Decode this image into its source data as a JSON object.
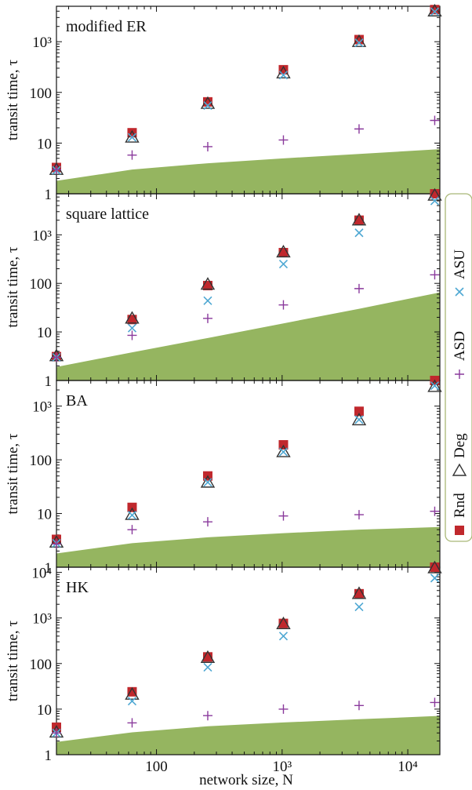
{
  "colors": {
    "rnd": "#c0282d",
    "deg": "#333333",
    "asu": "#4fa8d3",
    "asd": "#8a3a9c",
    "band": "#95b560",
    "legend_border": "#a9b877"
  },
  "shared": {
    "xlabel": "network size, N",
    "ylabel": "transit time, τ",
    "x_ticks": [
      "100",
      "10³",
      "10⁴"
    ],
    "xlim": [
      16,
      18000
    ]
  },
  "legend": {
    "items": [
      {
        "key": "rnd",
        "label": "Rnd",
        "marker": "square"
      },
      {
        "key": "deg",
        "label": "Deg",
        "marker": "triangle"
      },
      {
        "key": "asd",
        "label": "ASD",
        "marker": "plus"
      },
      {
        "key": "asu",
        "label": "ASU",
        "marker": "cross"
      }
    ]
  },
  "chart_data": [
    {
      "type": "scatter",
      "title": "modified ER",
      "xscale": "log",
      "yscale": "log",
      "ylim": [
        1,
        5000
      ],
      "y_ticks": [
        "1",
        "10",
        "100",
        "10³"
      ],
      "x": [
        16,
        64,
        256,
        1024,
        4096,
        16384
      ],
      "series": [
        {
          "name": "Rnd",
          "key": "rnd",
          "marker": "square",
          "values": [
            3.3,
            16,
            65,
            280,
            1100,
            4300
          ]
        },
        {
          "name": "Deg",
          "key": "deg",
          "marker": "triangle",
          "values": [
            3.0,
            13,
            60,
            240,
            1000,
            4000
          ]
        },
        {
          "name": "ASU",
          "key": "asu",
          "marker": "cross",
          "values": [
            2.9,
            13,
            55,
            220,
            950,
            3900
          ]
        },
        {
          "name": "ASD",
          "key": "asd",
          "marker": "plus",
          "values": [
            3.0,
            5.8,
            8.5,
            11.5,
            19,
            28
          ]
        }
      ],
      "band": {
        "x": [
          16,
          64,
          256,
          1024,
          4096,
          18000
        ],
        "upper": [
          1.8,
          3.0,
          4.0,
          5.0,
          6.1,
          7.6
        ]
      }
    },
    {
      "type": "scatter",
      "title": "square lattice",
      "xscale": "log",
      "yscale": "log",
      "ylim": [
        1,
        7000
      ],
      "y_ticks": [
        "1",
        "10",
        "100",
        "10³"
      ],
      "x": [
        16,
        64,
        256,
        1024,
        4096,
        16384
      ],
      "series": [
        {
          "name": "Rnd",
          "key": "rnd",
          "marker": "square",
          "values": [
            3.1,
            18,
            90,
            430,
            2000,
            7000
          ]
        },
        {
          "name": "Deg",
          "key": "deg",
          "marker": "triangle",
          "values": [
            3.2,
            19,
            95,
            440,
            2000,
            6500
          ]
        },
        {
          "name": "ASU",
          "key": "asu",
          "marker": "cross",
          "values": [
            3.0,
            12,
            44,
            250,
            1100,
            5000
          ]
        },
        {
          "name": "ASD",
          "key": "asd",
          "marker": "plus",
          "values": [
            3.0,
            8.5,
            19,
            36,
            78,
            150
          ]
        }
      ],
      "band": {
        "x": [
          16,
          64,
          256,
          1024,
          4096,
          18000
        ],
        "upper": [
          1.9,
          3.8,
          7.5,
          15,
          30,
          65
        ]
      }
    },
    {
      "type": "scatter",
      "title": "BA",
      "xscale": "log",
      "yscale": "log",
      "ylim": [
        1,
        3000
      ],
      "y_ticks": [
        "1",
        "10",
        "100",
        "10³"
      ],
      "x": [
        16,
        64,
        256,
        1024,
        4096,
        16384
      ],
      "series": [
        {
          "name": "Rnd",
          "key": "rnd",
          "marker": "square",
          "values": [
            3.3,
            13,
            50,
            190,
            800,
            3000
          ]
        },
        {
          "name": "Deg",
          "key": "deg",
          "marker": "triangle",
          "values": [
            2.9,
            9.5,
            38,
            140,
            550,
            2300
          ]
        },
        {
          "name": "ASU",
          "key": "asu",
          "marker": "cross",
          "values": [
            2.8,
            9.3,
            38,
            140,
            560,
            2400
          ]
        },
        {
          "name": "ASD",
          "key": "asd",
          "marker": "plus",
          "values": [
            2.7,
            5.0,
            7.0,
            9.0,
            9.5,
            11
          ]
        }
      ],
      "band": {
        "x": [
          16,
          64,
          256,
          1024,
          4096,
          18000
        ],
        "upper": [
          1.8,
          2.8,
          3.6,
          4.3,
          5.0,
          5.6
        ]
      }
    },
    {
      "type": "scatter",
      "title": "HK",
      "xscale": "log",
      "yscale": "log",
      "ylim": [
        1,
        13000
      ],
      "y_ticks": [
        "1",
        "10",
        "100",
        "10³",
        "10⁴"
      ],
      "x": [
        16,
        64,
        256,
        1024,
        4096,
        16384
      ],
      "series": [
        {
          "name": "Rnd",
          "key": "rnd",
          "marker": "square",
          "values": [
            4.0,
            24,
            140,
            760,
            3400,
            13000
          ]
        },
        {
          "name": "Deg",
          "key": "deg",
          "marker": "triangle",
          "values": [
            3.1,
            21,
            135,
            740,
            3400,
            12500
          ]
        },
        {
          "name": "ASU",
          "key": "asu",
          "marker": "cross",
          "values": [
            3.0,
            15,
            83,
            400,
            1750,
            7500
          ]
        },
        {
          "name": "ASD",
          "key": "asd",
          "marker": "plus",
          "values": [
            3.0,
            5.0,
            7.2,
            10,
            12,
            14
          ]
        }
      ],
      "band": {
        "x": [
          16,
          64,
          256,
          1024,
          4096,
          18000
        ],
        "upper": [
          1.9,
          3.1,
          4.2,
          5.1,
          6.0,
          7.1
        ]
      }
    }
  ]
}
